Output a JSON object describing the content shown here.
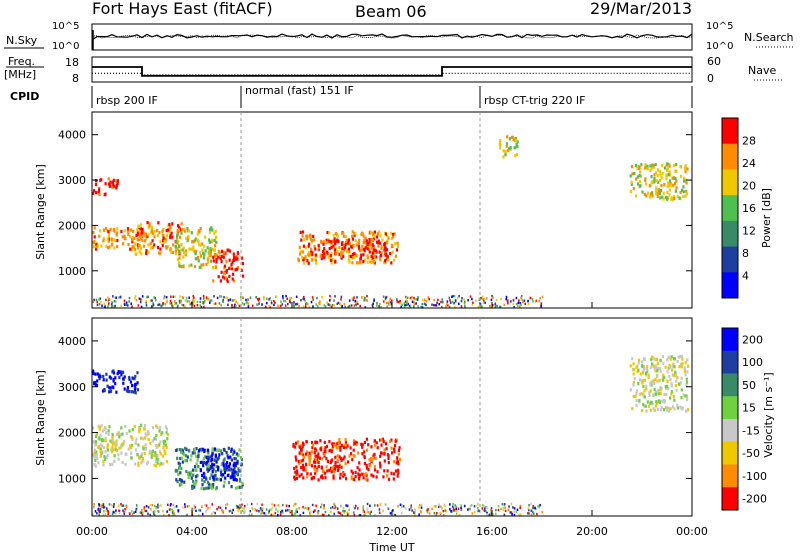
{
  "header": {
    "station": "Fort Hays East (fitACF)",
    "beam": "Beam 06",
    "date": "29/Mar/2013"
  },
  "noise_panel": {
    "left_label": "N.Sky",
    "right_label": "N.Search",
    "left_ticks": [
      "10^5",
      "10^0"
    ],
    "right_ticks": [
      "10^5",
      "10^0"
    ]
  },
  "freq_panel": {
    "left_label_top": "Freq.",
    "left_label_bottom": "[MHz]",
    "right_label": "Nave",
    "left_ticks": [
      "18",
      "8"
    ],
    "right_ticks": [
      "60",
      "0"
    ]
  },
  "cpid": {
    "label": "CPID",
    "segments": [
      {
        "name": "rbsp 200 IF",
        "start_h": 0
      },
      {
        "name": "normal (fast) 151 IF",
        "start_h": 6
      },
      {
        "name": "rbsp CT-trig 220 IF",
        "start_h": 15.5
      }
    ]
  },
  "power_panel": {
    "ylabel": "Slant Range [km]",
    "yticks": [
      "1000",
      "2000",
      "3000",
      "4000"
    ],
    "colorbar_label": "Power [dB]",
    "colorbar_ticks": [
      "4",
      "8",
      "12",
      "16",
      "20",
      "24",
      "28"
    ],
    "colors": [
      "#0000ff",
      "#1f3fa0",
      "#3a8a6a",
      "#4fbf4f",
      "#f0c800",
      "#ff8c00",
      "#ff0000"
    ]
  },
  "velocity_panel": {
    "ylabel": "Slant Range [km]",
    "yticks": [
      "1000",
      "2000",
      "3000",
      "4000"
    ],
    "colorbar_label": "Velocity [m s⁻¹]",
    "colorbar_ticks": [
      "200",
      "100",
      "50",
      "15",
      "-15",
      "-50",
      "-100",
      "-200"
    ],
    "colors": [
      "#0000ff",
      "#1f3fa0",
      "#3a8a6a",
      "#6fd040",
      "#c8c8c8",
      "#f0c800",
      "#ff8c00",
      "#ff0000"
    ]
  },
  "x_axis": {
    "label": "Time UT",
    "ticks": [
      "00:00",
      "04:00",
      "08:00",
      "12:00",
      "16:00",
      "20:00",
      "00:00"
    ]
  },
  "chart_data": {
    "type": "heatmap",
    "x_range_hours": [
      0,
      24
    ],
    "y_range_km": [
      180,
      4500
    ],
    "freq_series": {
      "name": "Freq.",
      "values_mhz": [
        {
          "t0": 0,
          "t1": 2,
          "v": 15.5
        },
        {
          "t0": 2,
          "t1": 14,
          "v": 10
        },
        {
          "t0": 14,
          "t1": 24,
          "v": 15.5
        }
      ]
    },
    "nave_series": {
      "name": "Nave",
      "values": [
        {
          "t0": 0,
          "t1": 2,
          "v": 26
        },
        {
          "t0": 2,
          "t1": 14,
          "v": 21
        },
        {
          "t0": 14,
          "t1": 24,
          "v": 26
        }
      ]
    },
    "power_regions": [
      {
        "t0": 0.0,
        "t1": 1.0,
        "r0": 2700,
        "r1": 3100,
        "level": 6
      },
      {
        "t0": 0.0,
        "t1": 2.0,
        "r0": 1500,
        "r1": 2000,
        "level": 5
      },
      {
        "t0": 1.7,
        "t1": 3.6,
        "r0": 1400,
        "r1": 2100,
        "level": 5
      },
      {
        "t0": 3.3,
        "t1": 5.0,
        "r0": 1100,
        "r1": 2000,
        "level": 4
      },
      {
        "t0": 4.8,
        "t1": 6.0,
        "r0": 800,
        "r1": 1500,
        "level": 6
      },
      {
        "t0": 8.2,
        "t1": 12.2,
        "r0": 1200,
        "r1": 1900,
        "level": 5
      },
      {
        "t0": 9.0,
        "t1": 11.8,
        "r0": 1300,
        "r1": 1700,
        "level": 6
      },
      {
        "t0": 16.2,
        "t1": 17.0,
        "r0": 3500,
        "r1": 4000,
        "level": 4
      },
      {
        "t0": 21.5,
        "t1": 23.8,
        "r0": 2600,
        "r1": 3400,
        "level": 4
      }
    ],
    "velocity_regions": [
      {
        "t0": 0.0,
        "t1": 1.8,
        "r0": 2900,
        "r1": 3400,
        "level": 0
      },
      {
        "t0": 0.0,
        "t1": 3.0,
        "r0": 1300,
        "r1": 2200,
        "level": 4
      },
      {
        "t0": 3.3,
        "t1": 6.0,
        "r0": 800,
        "r1": 1700,
        "level": 2
      },
      {
        "t0": 4.2,
        "t1": 5.8,
        "r0": 1000,
        "r1": 1700,
        "level": 0
      },
      {
        "t0": 8.0,
        "t1": 12.3,
        "r0": 1000,
        "r1": 1900,
        "level": 7
      },
      {
        "t0": 21.5,
        "t1": 23.8,
        "r0": 2500,
        "r1": 3700,
        "level": 4
      }
    ]
  }
}
